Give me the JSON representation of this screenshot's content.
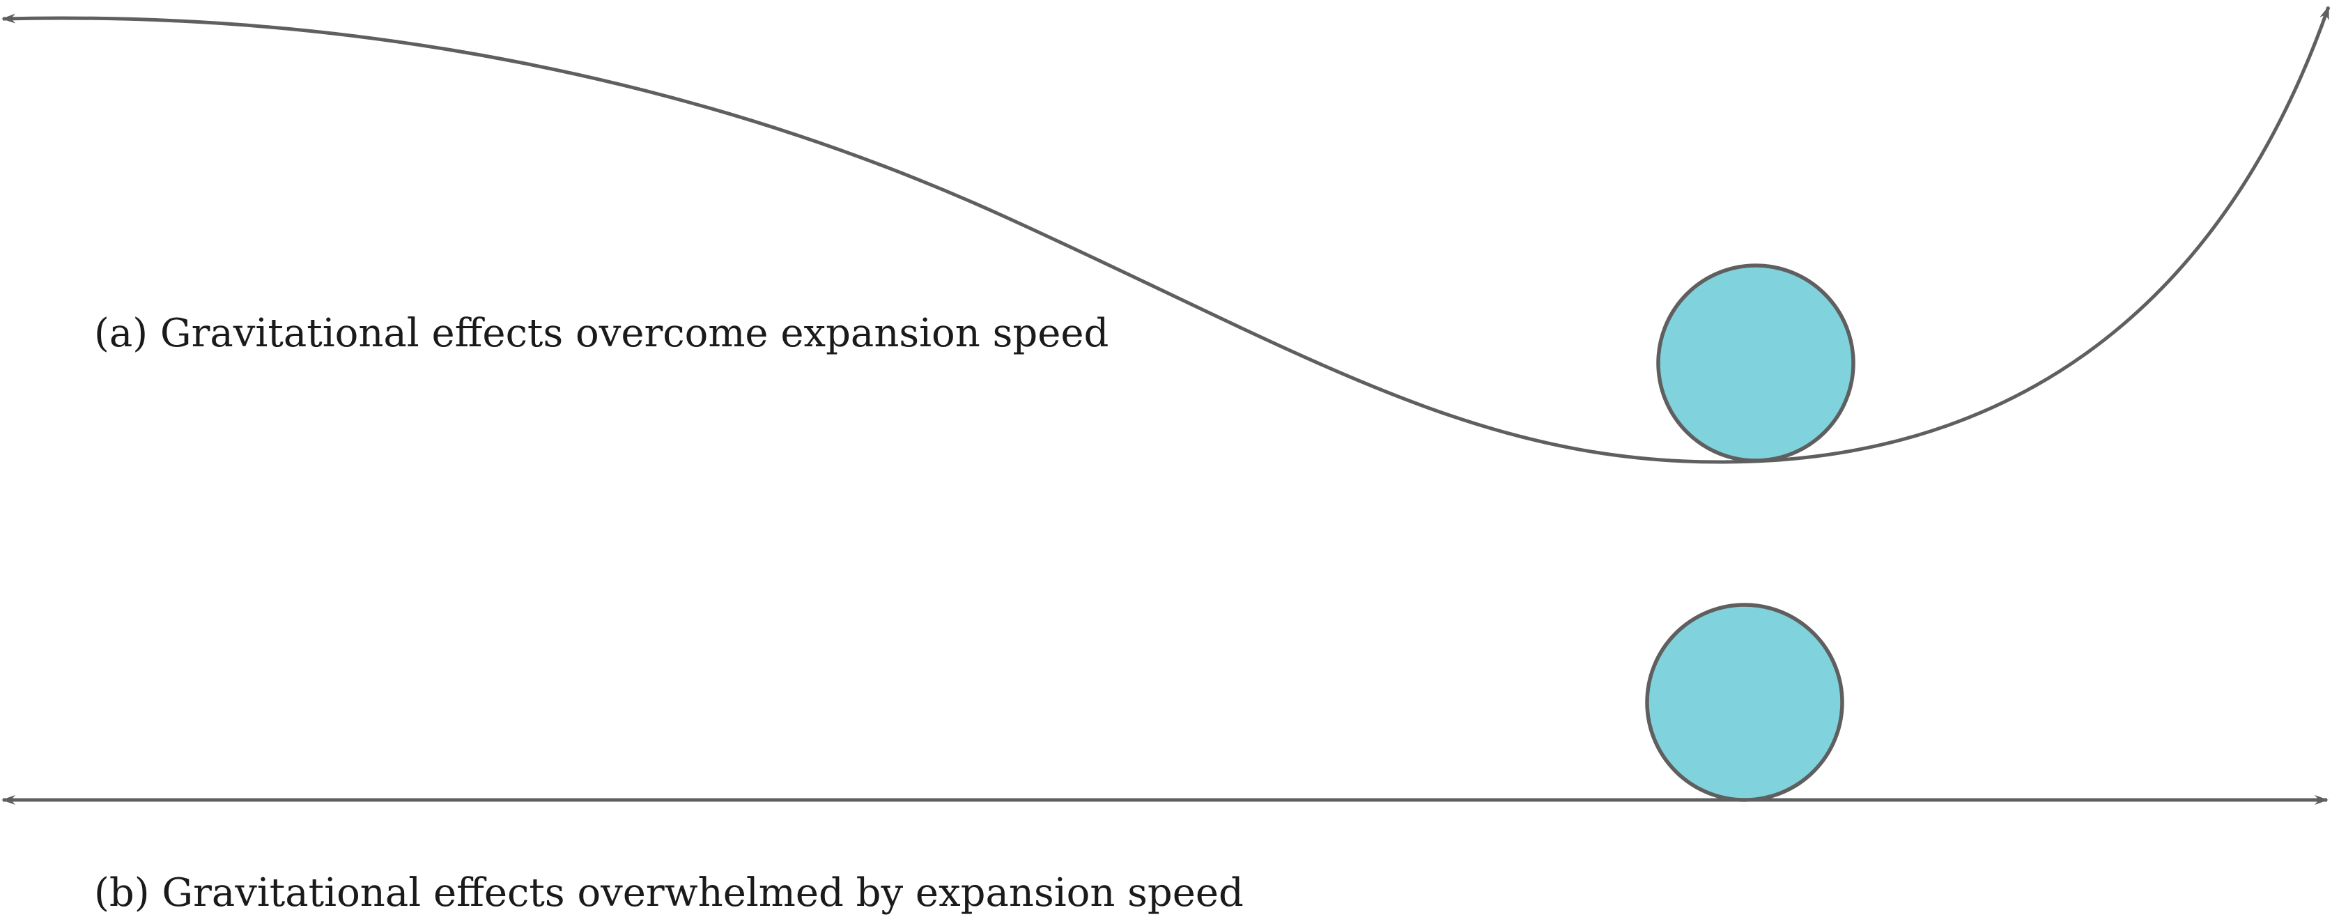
{
  "diagram": {
    "panel_a": {
      "caption": "(a) Gravitational effects overcome expansion speed"
    },
    "panel_b": {
      "caption": "(b) Gravitational effects overwhelmed by expansion speed"
    },
    "colors": {
      "line": "#5f5f5f",
      "ball_fill": "#80d3dd",
      "ball_stroke": "#5f5f5f",
      "text": "#1a1a1a",
      "background": "#ffffff"
    }
  }
}
